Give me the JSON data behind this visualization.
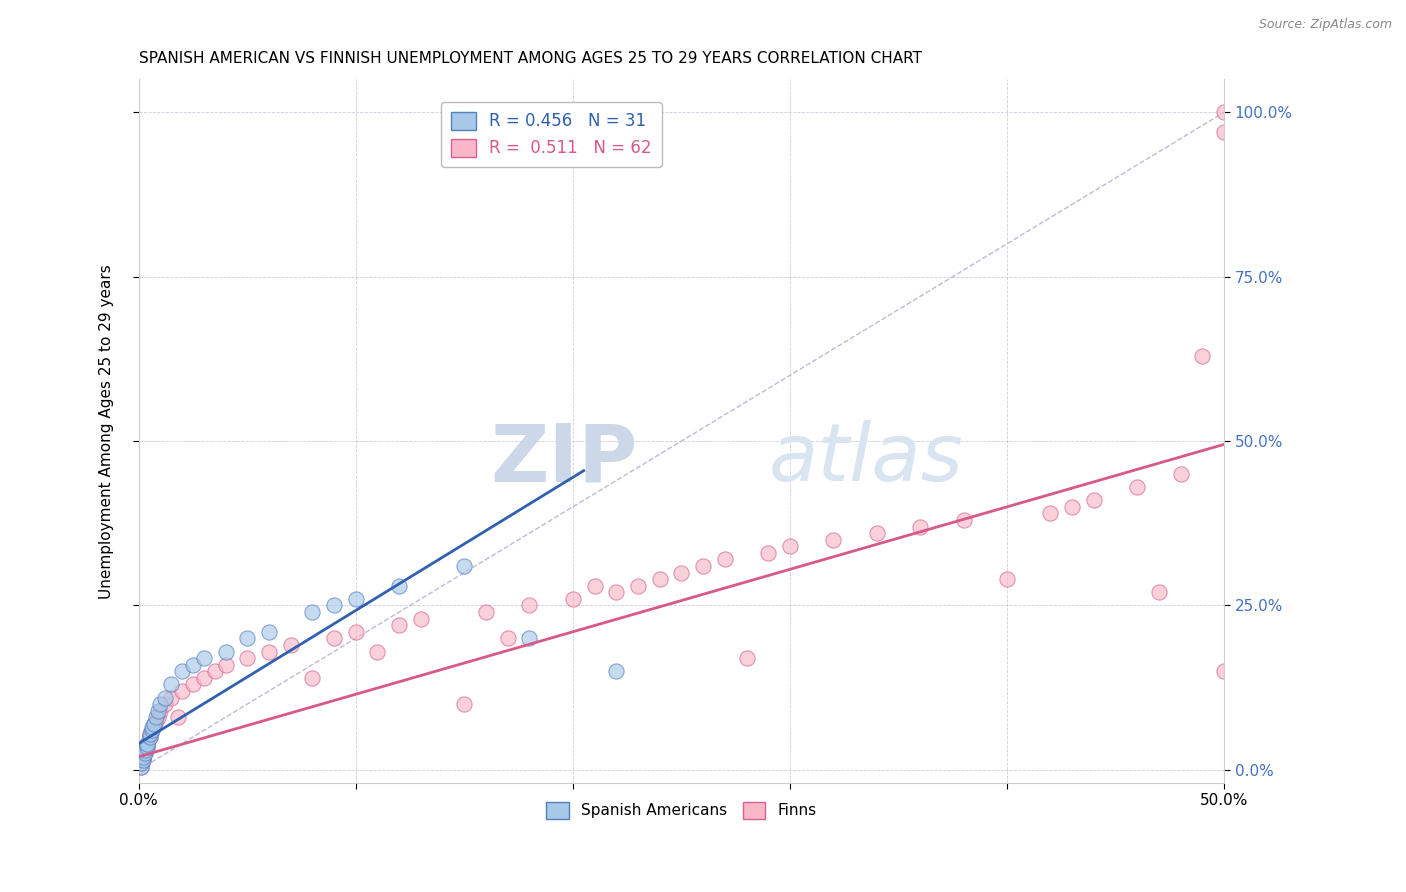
{
  "title": "SPANISH AMERICAN VS FINNISH UNEMPLOYMENT AMONG AGES 25 TO 29 YEARS CORRELATION CHART",
  "source": "Source: ZipAtlas.com",
  "ylabel_label": "Unemployment Among Ages 25 to 29 years",
  "legend_blue_text": "R = 0.456   N = 31",
  "legend_pink_text": "R =  0.511   N = 62",
  "legend_blue_label": "Spanish Americans",
  "legend_pink_label": "Finns",
  "blue_color": "#a8c8e8",
  "pink_color": "#f8b8c8",
  "blue_edge_color": "#5080c0",
  "pink_edge_color": "#d86090",
  "blue_line_color": "#3060b0",
  "pink_line_color": "#d85888",
  "legend_text_blue": "#3060b0",
  "legend_text_pink": "#d85888",
  "right_axis_color": "#4472c4",
  "scatter_alpha": 0.65,
  "scatter_size": 120,
  "watermark_color": "#ccd8e8",
  "xmin": 0.0,
  "xmax": 0.5,
  "ymin": -0.02,
  "ymax": 1.05,
  "blue_scatter_x": [
    0.001,
    0.001,
    0.002,
    0.002,
    0.003,
    0.003,
    0.004,
    0.004,
    0.005,
    0.005,
    0.006,
    0.006,
    0.007,
    0.008,
    0.009,
    0.01,
    0.012,
    0.015,
    0.02,
    0.025,
    0.03,
    0.04,
    0.05,
    0.06,
    0.08,
    0.09,
    0.1,
    0.12,
    0.15,
    0.18,
    0.22
  ],
  "blue_scatter_y": [
    0.005,
    0.01,
    0.015,
    0.02,
    0.025,
    0.03,
    0.035,
    0.04,
    0.05,
    0.055,
    0.06,
    0.065,
    0.07,
    0.08,
    0.09,
    0.1,
    0.11,
    0.13,
    0.15,
    0.16,
    0.17,
    0.18,
    0.2,
    0.21,
    0.24,
    0.25,
    0.26,
    0.28,
    0.31,
    0.2,
    0.15
  ],
  "pink_scatter_x": [
    0.001,
    0.001,
    0.002,
    0.002,
    0.003,
    0.003,
    0.004,
    0.004,
    0.005,
    0.005,
    0.006,
    0.007,
    0.008,
    0.009,
    0.01,
    0.012,
    0.015,
    0.018,
    0.02,
    0.025,
    0.03,
    0.035,
    0.04,
    0.05,
    0.06,
    0.07,
    0.08,
    0.09,
    0.1,
    0.11,
    0.12,
    0.13,
    0.15,
    0.16,
    0.17,
    0.18,
    0.2,
    0.21,
    0.22,
    0.23,
    0.24,
    0.25,
    0.26,
    0.27,
    0.28,
    0.29,
    0.3,
    0.32,
    0.34,
    0.36,
    0.38,
    0.4,
    0.42,
    0.43,
    0.44,
    0.46,
    0.47,
    0.48,
    0.49,
    0.5,
    0.5,
    0.5
  ],
  "pink_scatter_y": [
    0.005,
    0.01,
    0.015,
    0.02,
    0.025,
    0.03,
    0.035,
    0.04,
    0.05,
    0.055,
    0.06,
    0.07,
    0.075,
    0.08,
    0.09,
    0.1,
    0.11,
    0.08,
    0.12,
    0.13,
    0.14,
    0.15,
    0.16,
    0.17,
    0.18,
    0.19,
    0.14,
    0.2,
    0.21,
    0.18,
    0.22,
    0.23,
    0.1,
    0.24,
    0.2,
    0.25,
    0.26,
    0.28,
    0.27,
    0.28,
    0.29,
    0.3,
    0.31,
    0.32,
    0.17,
    0.33,
    0.34,
    0.35,
    0.36,
    0.37,
    0.38,
    0.29,
    0.39,
    0.4,
    0.41,
    0.43,
    0.27,
    0.45,
    0.63,
    0.97,
    1.0,
    0.15
  ],
  "blue_line_x": [
    0.0,
    0.205
  ],
  "blue_line_y": [
    0.04,
    0.455
  ],
  "pink_line_x": [
    0.0,
    0.5
  ],
  "pink_line_y": [
    0.02,
    0.495
  ],
  "ref_line_x": [
    0.0,
    0.5
  ],
  "ref_line_y": [
    0.0,
    1.0
  ],
  "yticks": [
    0.0,
    0.25,
    0.5,
    0.75,
    1.0
  ],
  "xtick_labels_show": [
    0.0,
    0.5
  ],
  "xtick_minor": [
    0.1,
    0.2,
    0.3,
    0.4
  ]
}
